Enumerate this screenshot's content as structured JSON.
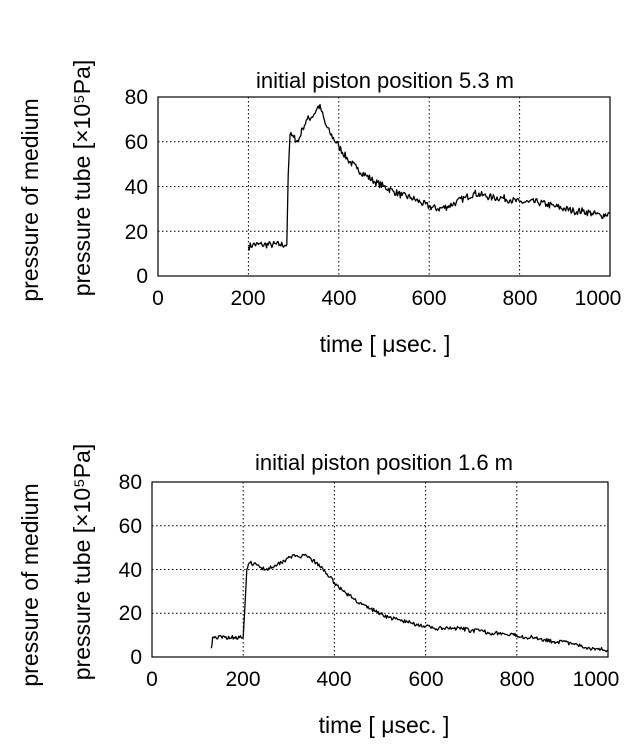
{
  "chart_data": [
    {
      "type": "line",
      "title": "initial piston position 5.3 m",
      "xlabel": "time [  μsec. ]",
      "ylabel_line1": "pressure of medium",
      "ylabel_line2": "pressure tube [×10⁵Pa]",
      "xlim": [
        0,
        1000
      ],
      "ylim": [
        0,
        80
      ],
      "xticks": [
        0,
        200,
        400,
        600,
        800,
        1000
      ],
      "yticks": [
        0,
        20,
        40,
        60,
        80
      ],
      "grid": true,
      "series": [
        {
          "x": [
            200,
            210,
            230,
            250,
            270,
            285,
            288,
            292,
            300,
            310,
            320,
            330,
            340,
            350,
            355,
            360,
            370,
            380,
            400,
            420,
            440,
            460,
            480,
            500,
            520,
            540,
            560,
            580,
            600,
            620,
            640,
            660,
            680,
            700,
            720,
            740,
            760,
            780,
            800,
            820,
            840,
            860,
            880,
            900,
            920,
            940,
            960,
            980,
            1000
          ],
          "y": [
            13,
            14,
            14,
            14,
            14,
            14,
            45,
            63,
            62,
            60,
            66,
            70,
            71,
            74,
            76,
            75,
            68,
            64,
            58,
            52,
            48,
            45,
            42,
            40,
            38,
            36,
            35,
            33,
            31,
            30,
            31,
            33,
            35,
            37,
            36,
            35,
            35,
            34,
            33,
            33,
            33,
            32,
            31,
            30,
            29,
            29,
            28,
            27,
            28
          ]
        }
      ]
    },
    {
      "type": "line",
      "title": "initial piston position 1.6 m",
      "xlabel": "time [  μsec. ]",
      "ylabel_line1": "pressure of medium",
      "ylabel_line2": "pressure tube [×10⁵Pa]",
      "xlim": [
        0,
        1000
      ],
      "ylim": [
        0,
        80
      ],
      "xticks": [
        0,
        200,
        400,
        600,
        800,
        1000
      ],
      "yticks": [
        0,
        20,
        40,
        60,
        80
      ],
      "grid": true,
      "series": [
        {
          "x": [
            130,
            133,
            140,
            160,
            180,
            200,
            205,
            208,
            215,
            230,
            250,
            270,
            290,
            300,
            320,
            340,
            360,
            380,
            400,
            420,
            440,
            460,
            480,
            500,
            520,
            540,
            560,
            580,
            600,
            620,
            640,
            660,
            680,
            700,
            720,
            740,
            760,
            780,
            800,
            820,
            840,
            860,
            880,
            900,
            920,
            940,
            960,
            980,
            1000
          ],
          "y": [
            4,
            9,
            9,
            9,
            9,
            9,
            28,
            40,
            43,
            42,
            40,
            42,
            44,
            46,
            46,
            46,
            43,
            39,
            34,
            30,
            27,
            24,
            22,
            20,
            18,
            17,
            16,
            15,
            14,
            13,
            13,
            13,
            13,
            12,
            12,
            11,
            11,
            10,
            10,
            9,
            9,
            8,
            7,
            7,
            6,
            5,
            4,
            4,
            3
          ]
        }
      ]
    }
  ]
}
